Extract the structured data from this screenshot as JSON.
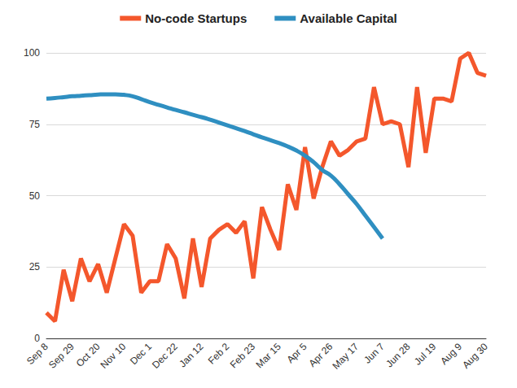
{
  "chart_data": {
    "type": "line",
    "categories": [
      "Sep 8",
      null,
      null,
      "Sep 29",
      null,
      null,
      "Oct 20",
      null,
      null,
      "Nov 10",
      null,
      null,
      "Dec 1",
      null,
      null,
      "Dec 22",
      null,
      null,
      "Jan 12",
      null,
      null,
      "Feb 2",
      null,
      null,
      "Feb 23",
      null,
      null,
      "Mar 15",
      null,
      null,
      "Apr 5",
      null,
      null,
      "Apr 26",
      null,
      null,
      "May 17",
      null,
      null,
      "Jun 7",
      null,
      null,
      "Jun 28",
      null,
      null,
      "Jul 19",
      null,
      null,
      "Aug 9",
      null,
      null,
      "Aug 30"
    ],
    "series": [
      {
        "name": "No-code Startups",
        "color": "#f4572c",
        "line_style": "solid",
        "values": [
          9,
          6,
          24,
          13,
          28,
          20,
          26,
          16,
          28,
          40,
          36,
          16,
          20,
          20,
          33,
          28,
          14,
          35,
          18,
          35,
          38,
          40,
          37,
          41,
          21,
          46,
          38,
          31,
          54,
          45,
          67,
          49,
          60,
          69,
          64,
          66,
          69,
          70,
          88,
          75,
          76,
          75,
          60,
          88,
          65,
          84,
          84,
          83,
          98,
          100,
          93,
          92
        ]
      },
      {
        "name": "Available Capital",
        "color": "#2f8fc1",
        "line_style": "smooth",
        "values": [
          84,
          84.2,
          84.5,
          84.8,
          85,
          85.2,
          85.4,
          85.5,
          85.5,
          85.3,
          84.8,
          83.8,
          82.7,
          81.8,
          80.9,
          80,
          79.2,
          78.3,
          77.5,
          76.6,
          75.6,
          74.6,
          73.6,
          72.6,
          71.5,
          70.4,
          69.4,
          68.4,
          67.2,
          65.8,
          64,
          61.7,
          59,
          57,
          54,
          50.5,
          47,
          43,
          39,
          35,
          null,
          null,
          null,
          null,
          null,
          null,
          null,
          null,
          null,
          null,
          null,
          null
        ]
      }
    ],
    "ylim": [
      0,
      100
    ],
    "yticks": [
      0,
      25,
      50,
      75,
      100
    ],
    "grid": true,
    "legend": "top"
  }
}
